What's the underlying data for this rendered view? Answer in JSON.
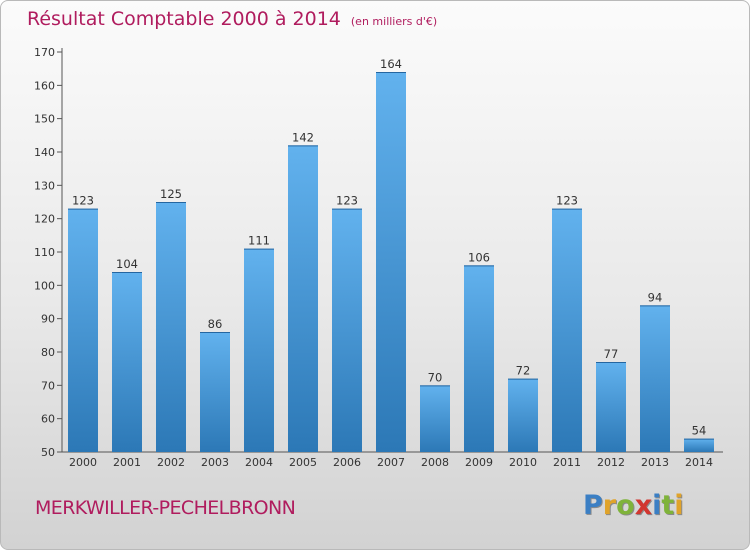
{
  "header": {
    "title": "Résultat Comptable 2000 à 2014",
    "subtitle": "(en milliers d'€)"
  },
  "footer": {
    "city": "MERKWILLER-PECHELBRONN",
    "logo_text": "Proxiti"
  },
  "colors": {
    "bar_light": "#5eaeea",
    "bar_dark": "#2a77b5",
    "title": "#b01c5e",
    "logo": [
      "#3b7fc4",
      "#e0a32a",
      "#7fb33a",
      "#d2362f",
      "#3b7fc4",
      "#7fb33a",
      "#e0a32a"
    ]
  },
  "chart_data": {
    "type": "bar",
    "categories": [
      "2000",
      "2001",
      "2002",
      "2003",
      "2004",
      "2005",
      "2006",
      "2007",
      "2008",
      "2009",
      "2010",
      "2011",
      "2012",
      "2013",
      "2014"
    ],
    "values": [
      123,
      104,
      125,
      86,
      111,
      142,
      123,
      164,
      70,
      106,
      72,
      123,
      77,
      94,
      54
    ],
    "ylim": [
      50,
      170
    ],
    "yticks": [
      50,
      60,
      70,
      80,
      90,
      100,
      110,
      120,
      130,
      140,
      150,
      160,
      170
    ],
    "grid": false,
    "legend": "none"
  }
}
